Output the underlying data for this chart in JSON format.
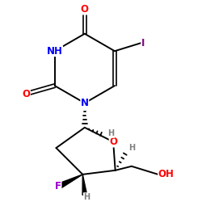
{
  "bg_color": "#ffffff",
  "atom_colors": {
    "C": "#000000",
    "N": "#0000ff",
    "O": "#ff0000",
    "F": "#9900cc",
    "I": "#800080",
    "H": "#808080"
  },
  "bond_color": "#000000",
  "bond_width": 1.4,
  "font_size_atoms": 8.5,
  "font_size_H": 7.0,
  "xlim": [
    0.05,
    0.95
  ],
  "ylim": [
    0.0,
    1.0
  ]
}
